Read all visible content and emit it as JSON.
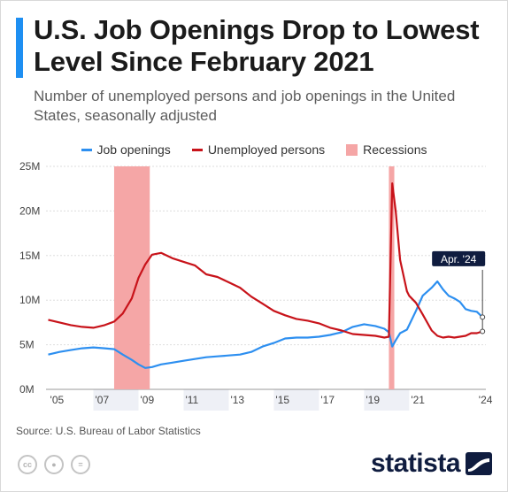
{
  "title": "U.S. Job Openings Drop to Lowest Level Since February 2021",
  "subtitle": "Number of unemployed persons and job openings in the United States, seasonally adjusted",
  "colors": {
    "accent": "#1e8ff2",
    "job_openings": "#2d8ff0",
    "unemployed": "#c8131a",
    "recession": "#f5a6a6",
    "grid": "#dddddd",
    "band": "#eef0f6"
  },
  "legend": {
    "job_openings": "Job openings",
    "unemployed": "Unemployed persons",
    "recessions": "Recessions"
  },
  "source": "Source: U.S. Bureau of Labor Statistics",
  "license_icons": [
    "creative-commons-icon",
    "attribution-icon",
    "no-derivatives-icon"
  ],
  "brand": {
    "name": "statista"
  },
  "chart_data": {
    "type": "line",
    "x_unit": "year",
    "xlim": [
      2004.9,
      2024.4
    ],
    "ylim": [
      0,
      25
    ],
    "y_ticks": [
      0,
      5,
      10,
      15,
      20,
      25
    ],
    "y_tick_labels": [
      "0M",
      "5M",
      "10M",
      "15M",
      "20M",
      "25M"
    ],
    "x_ticks": [
      2005,
      2007,
      2009,
      2011,
      2013,
      2015,
      2017,
      2019,
      2021,
      2024
    ],
    "x_tick_labels": [
      "'05",
      "'07",
      "'09",
      "'11",
      "'13",
      "'15",
      "'17",
      "'19",
      "'21",
      "'24"
    ],
    "recessions": [
      [
        2007.92,
        2009.5
      ],
      [
        2020.1,
        2020.34
      ]
    ],
    "annotation": {
      "label": "Apr. '24",
      "x": 2024.25
    },
    "series": [
      {
        "name": "Job openings",
        "color_key": "job_openings",
        "points": [
          [
            2005.0,
            3.9
          ],
          [
            2005.5,
            4.2
          ],
          [
            2006.0,
            4.4
          ],
          [
            2006.5,
            4.6
          ],
          [
            2007.0,
            4.7
          ],
          [
            2007.5,
            4.6
          ],
          [
            2007.92,
            4.5
          ],
          [
            2008.3,
            3.9
          ],
          [
            2008.7,
            3.3
          ],
          [
            2009.0,
            2.8
          ],
          [
            2009.3,
            2.4
          ],
          [
            2009.6,
            2.5
          ],
          [
            2010.0,
            2.8
          ],
          [
            2010.5,
            3.0
          ],
          [
            2011.0,
            3.2
          ],
          [
            2011.5,
            3.4
          ],
          [
            2012.0,
            3.6
          ],
          [
            2012.5,
            3.7
          ],
          [
            2013.0,
            3.8
          ],
          [
            2013.5,
            3.9
          ],
          [
            2014.0,
            4.2
          ],
          [
            2014.5,
            4.8
          ],
          [
            2015.0,
            5.2
          ],
          [
            2015.5,
            5.7
          ],
          [
            2016.0,
            5.8
          ],
          [
            2016.5,
            5.8
          ],
          [
            2017.0,
            5.9
          ],
          [
            2017.5,
            6.1
          ],
          [
            2018.0,
            6.4
          ],
          [
            2018.5,
            7.0
          ],
          [
            2019.0,
            7.3
          ],
          [
            2019.5,
            7.1
          ],
          [
            2019.9,
            6.8
          ],
          [
            2020.1,
            6.4
          ],
          [
            2020.25,
            4.8
          ],
          [
            2020.4,
            5.5
          ],
          [
            2020.6,
            6.3
          ],
          [
            2020.9,
            6.7
          ],
          [
            2021.0,
            7.2
          ],
          [
            2021.3,
            8.8
          ],
          [
            2021.6,
            10.5
          ],
          [
            2022.0,
            11.4
          ],
          [
            2022.25,
            12.1
          ],
          [
            2022.5,
            11.2
          ],
          [
            2022.75,
            10.5
          ],
          [
            2023.0,
            10.2
          ],
          [
            2023.25,
            9.8
          ],
          [
            2023.5,
            9.0
          ],
          [
            2023.75,
            8.8
          ],
          [
            2024.0,
            8.7
          ],
          [
            2024.25,
            8.1
          ]
        ]
      },
      {
        "name": "Unemployed persons",
        "color_key": "unemployed",
        "points": [
          [
            2005.0,
            7.8
          ],
          [
            2005.5,
            7.5
          ],
          [
            2006.0,
            7.2
          ],
          [
            2006.5,
            7.0
          ],
          [
            2007.0,
            6.9
          ],
          [
            2007.5,
            7.2
          ],
          [
            2007.92,
            7.6
          ],
          [
            2008.3,
            8.5
          ],
          [
            2008.7,
            10.2
          ],
          [
            2009.0,
            12.5
          ],
          [
            2009.3,
            14.0
          ],
          [
            2009.6,
            15.1
          ],
          [
            2009.8,
            15.2
          ],
          [
            2010.0,
            15.3
          ],
          [
            2010.5,
            14.7
          ],
          [
            2011.0,
            14.3
          ],
          [
            2011.5,
            13.9
          ],
          [
            2012.0,
            12.9
          ],
          [
            2012.5,
            12.6
          ],
          [
            2013.0,
            12.0
          ],
          [
            2013.5,
            11.4
          ],
          [
            2014.0,
            10.4
          ],
          [
            2014.5,
            9.6
          ],
          [
            2015.0,
            8.8
          ],
          [
            2015.5,
            8.3
          ],
          [
            2016.0,
            7.9
          ],
          [
            2016.5,
            7.7
          ],
          [
            2017.0,
            7.4
          ],
          [
            2017.5,
            6.9
          ],
          [
            2018.0,
            6.6
          ],
          [
            2018.5,
            6.2
          ],
          [
            2019.0,
            6.1
          ],
          [
            2019.5,
            6.0
          ],
          [
            2019.9,
            5.8
          ],
          [
            2020.1,
            5.9
          ],
          [
            2020.25,
            23.1
          ],
          [
            2020.4,
            20.0
          ],
          [
            2020.6,
            14.5
          ],
          [
            2020.9,
            11.0
          ],
          [
            2021.0,
            10.5
          ],
          [
            2021.3,
            9.7
          ],
          [
            2021.6,
            8.4
          ],
          [
            2022.0,
            6.6
          ],
          [
            2022.25,
            6.0
          ],
          [
            2022.5,
            5.8
          ],
          [
            2022.75,
            5.9
          ],
          [
            2023.0,
            5.8
          ],
          [
            2023.25,
            5.9
          ],
          [
            2023.5,
            6.0
          ],
          [
            2023.75,
            6.3
          ],
          [
            2024.0,
            6.3
          ],
          [
            2024.25,
            6.5
          ]
        ]
      }
    ]
  }
}
